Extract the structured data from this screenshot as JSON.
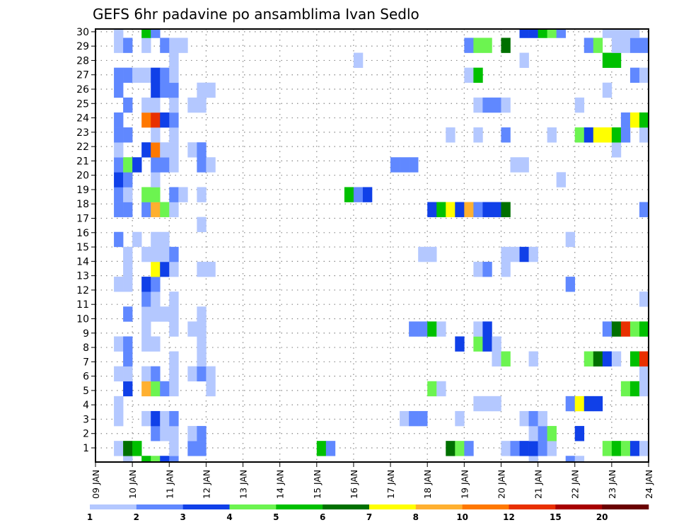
{
  "chart_data": {
    "type": "heatmap",
    "title": "GEFS 6hr padavine po ansamblima Ivan Sedlo",
    "xlabel": "",
    "ylabel": "",
    "x_tick_labels": [
      "09 JAN",
      "10 JAN",
      "11 JAN",
      "12 JAN",
      "13 JAN",
      "14 JAN",
      "15 JAN",
      "16 JAN",
      "17 JAN",
      "18 JAN",
      "19 JAN",
      "20 JAN",
      "21 JAN",
      "22 JAN",
      "23 JAN",
      "24 JAN"
    ],
    "x_steps_per_day": 4,
    "x_steps_total": 60,
    "y_tick_labels": [
      "1",
      "2",
      "3",
      "4",
      "5",
      "6",
      "7",
      "8",
      "9",
      "10",
      "11",
      "12",
      "13",
      "14",
      "15",
      "16",
      "17",
      "18",
      "19",
      "20",
      "21",
      "22",
      "23",
      "24",
      "25",
      "26",
      "27",
      "28",
      "29",
      "30"
    ],
    "ylim": [
      1,
      30
    ],
    "grid": true,
    "colorbar": {
      "placement": "bottom",
      "labels": [
        "1",
        "2",
        "3",
        "4",
        "5",
        "6",
        "7",
        "8",
        "10",
        "12",
        "15",
        "20"
      ],
      "colors": [
        "#b4c8ff",
        "#6088ff",
        "#1040e8",
        "#6cf450",
        "#00c000",
        "#007000",
        "#ffff00",
        "#ffb030",
        "#ff7800",
        "#e83000",
        "#a80000",
        "#6a0000"
      ]
    },
    "cells_note": "cells[member] = list of [6h step index from 09 JAN 00z, color level 1-12]",
    "cells": {
      "30": [
        [
          2,
          1
        ],
        [
          5,
          5
        ],
        [
          6,
          2
        ],
        [
          46,
          3
        ],
        [
          47,
          3
        ],
        [
          48,
          5
        ],
        [
          49,
          4
        ],
        [
          50,
          2
        ],
        [
          55,
          1
        ],
        [
          56,
          1
        ],
        [
          57,
          1
        ],
        [
          58,
          1
        ]
      ],
      "29": [
        [
          2,
          1
        ],
        [
          3,
          2
        ],
        [
          5,
          1
        ],
        [
          7,
          2
        ],
        [
          8,
          1
        ],
        [
          9,
          1
        ],
        [
          40,
          2
        ],
        [
          41,
          4
        ],
        [
          42,
          4
        ],
        [
          44,
          6
        ],
        [
          53,
          2
        ],
        [
          54,
          4
        ],
        [
          56,
          1
        ],
        [
          57,
          1
        ],
        [
          58,
          2
        ],
        [
          59,
          2
        ]
      ],
      "28": [
        [
          8,
          1
        ],
        [
          28,
          1
        ],
        [
          46,
          1
        ],
        [
          55,
          5
        ],
        [
          56,
          5
        ]
      ],
      "27": [
        [
          2,
          2
        ],
        [
          3,
          2
        ],
        [
          4,
          1
        ],
        [
          5,
          1
        ],
        [
          6,
          3
        ],
        [
          7,
          2
        ],
        [
          8,
          1
        ],
        [
          40,
          1
        ],
        [
          41,
          5
        ],
        [
          58,
          2
        ],
        [
          59,
          1
        ]
      ],
      "26": [
        [
          2,
          2
        ],
        [
          6,
          3
        ],
        [
          7,
          2
        ],
        [
          8,
          2
        ],
        [
          11,
          1
        ],
        [
          12,
          1
        ],
        [
          55,
          1
        ]
      ],
      "25": [
        [
          3,
          2
        ],
        [
          5,
          1
        ],
        [
          6,
          1
        ],
        [
          8,
          1
        ],
        [
          10,
          1
        ],
        [
          11,
          1
        ],
        [
          41,
          1
        ],
        [
          42,
          2
        ],
        [
          43,
          2
        ],
        [
          44,
          1
        ],
        [
          52,
          1
        ]
      ],
      "24": [
        [
          2,
          2
        ],
        [
          5,
          9
        ],
        [
          6,
          10
        ],
        [
          7,
          3
        ],
        [
          8,
          2
        ],
        [
          57,
          2
        ],
        [
          58,
          7
        ],
        [
          59,
          5
        ]
      ],
      "23": [
        [
          2,
          2
        ],
        [
          3,
          2
        ],
        [
          6,
          1
        ],
        [
          8,
          1
        ],
        [
          38,
          1
        ],
        [
          41,
          1
        ],
        [
          44,
          2
        ],
        [
          49,
          1
        ],
        [
          52,
          4
        ],
        [
          53,
          3
        ],
        [
          54,
          7
        ],
        [
          55,
          7
        ],
        [
          56,
          5
        ],
        [
          57,
          2
        ],
        [
          59,
          1
        ]
      ],
      "22": [
        [
          2,
          1
        ],
        [
          5,
          3
        ],
        [
          6,
          9
        ],
        [
          7,
          1
        ],
        [
          8,
          1
        ],
        [
          10,
          1
        ],
        [
          11,
          2
        ],
        [
          56,
          1
        ]
      ],
      "21": [
        [
          2,
          2
        ],
        [
          3,
          4
        ],
        [
          4,
          3
        ],
        [
          6,
          2
        ],
        [
          7,
          2
        ],
        [
          8,
          1
        ],
        [
          11,
          2
        ],
        [
          12,
          1
        ],
        [
          32,
          2
        ],
        [
          33,
          2
        ],
        [
          34,
          2
        ],
        [
          45,
          1
        ],
        [
          46,
          1
        ]
      ],
      "20": [
        [
          2,
          3
        ],
        [
          3,
          2
        ],
        [
          6,
          1
        ],
        [
          50,
          1
        ]
      ],
      "19": [
        [
          2,
          2
        ],
        [
          3,
          1
        ],
        [
          5,
          4
        ],
        [
          6,
          4
        ],
        [
          8,
          2
        ],
        [
          9,
          1
        ],
        [
          11,
          1
        ],
        [
          27,
          5
        ],
        [
          28,
          2
        ],
        [
          29,
          3
        ]
      ],
      "18": [
        [
          2,
          2
        ],
        [
          3,
          2
        ],
        [
          5,
          2
        ],
        [
          6,
          8
        ],
        [
          7,
          4
        ],
        [
          8,
          1
        ],
        [
          36,
          3
        ],
        [
          37,
          5
        ],
        [
          38,
          7
        ],
        [
          39,
          3
        ],
        [
          40,
          8
        ],
        [
          41,
          2
        ],
        [
          42,
          3
        ],
        [
          43,
          3
        ],
        [
          44,
          6
        ],
        [
          59,
          2
        ]
      ],
      "17": [
        [
          11,
          1
        ]
      ],
      "16": [
        [
          2,
          2
        ],
        [
          4,
          1
        ],
        [
          6,
          1
        ],
        [
          7,
          1
        ],
        [
          51,
          1
        ]
      ],
      "15": [
        [
          3,
          1
        ],
        [
          5,
          1
        ],
        [
          6,
          1
        ],
        [
          7,
          1
        ],
        [
          8,
          2
        ],
        [
          35,
          1
        ],
        [
          36,
          1
        ],
        [
          44,
          1
        ],
        [
          45,
          1
        ],
        [
          46,
          3
        ],
        [
          47,
          1
        ]
      ],
      "14": [
        [
          3,
          1
        ],
        [
          6,
          7
        ],
        [
          7,
          3
        ],
        [
          8,
          1
        ],
        [
          11,
          1
        ],
        [
          12,
          1
        ],
        [
          41,
          1
        ],
        [
          42,
          2
        ],
        [
          44,
          1
        ]
      ],
      "13": [
        [
          2,
          1
        ],
        [
          3,
          1
        ],
        [
          5,
          3
        ],
        [
          6,
          2
        ],
        [
          51,
          2
        ]
      ],
      "12": [
        [
          5,
          2
        ],
        [
          6,
          1
        ],
        [
          8,
          1
        ],
        [
          59,
          1
        ]
      ],
      "11": [
        [
          3,
          2
        ],
        [
          5,
          1
        ],
        [
          6,
          1
        ],
        [
          7,
          1
        ],
        [
          8,
          1
        ],
        [
          11,
          1
        ]
      ],
      "10": [
        [
          5,
          1
        ],
        [
          8,
          1
        ],
        [
          10,
          1
        ],
        [
          11,
          1
        ],
        [
          34,
          2
        ],
        [
          35,
          2
        ],
        [
          36,
          5
        ],
        [
          37,
          1
        ],
        [
          41,
          1
        ],
        [
          42,
          3
        ],
        [
          55,
          2
        ],
        [
          56,
          6
        ],
        [
          57,
          10
        ],
        [
          58,
          4
        ],
        [
          59,
          5
        ]
      ],
      "9": [
        [
          2,
          1
        ],
        [
          3,
          2
        ],
        [
          5,
          1
        ],
        [
          6,
          1
        ],
        [
          11,
          1
        ],
        [
          39,
          3
        ],
        [
          41,
          4
        ],
        [
          42,
          3
        ],
        [
          43,
          1
        ]
      ],
      "8": [
        [
          3,
          2
        ],
        [
          8,
          1
        ],
        [
          11,
          1
        ],
        [
          43,
          1
        ],
        [
          44,
          4
        ],
        [
          47,
          1
        ],
        [
          53,
          4
        ],
        [
          54,
          6
        ],
        [
          55,
          3
        ],
        [
          56,
          1
        ],
        [
          58,
          5
        ],
        [
          59,
          10
        ]
      ],
      "7": [
        [
          2,
          1
        ],
        [
          3,
          1
        ],
        [
          5,
          1
        ],
        [
          6,
          2
        ],
        [
          8,
          1
        ],
        [
          10,
          1
        ],
        [
          11,
          2
        ],
        [
          12,
          1
        ],
        [
          59,
          1
        ]
      ],
      "6": [
        [
          3,
          3
        ],
        [
          5,
          8
        ],
        [
          6,
          4
        ],
        [
          7,
          2
        ],
        [
          8,
          1
        ],
        [
          12,
          1
        ],
        [
          36,
          4
        ],
        [
          37,
          1
        ],
        [
          57,
          4
        ],
        [
          58,
          5
        ],
        [
          59,
          1
        ]
      ],
      "5": [
        [
          2,
          1
        ],
        [
          41,
          1
        ],
        [
          42,
          1
        ],
        [
          43,
          1
        ],
        [
          51,
          2
        ],
        [
          52,
          7
        ],
        [
          53,
          3
        ],
        [
          54,
          3
        ]
      ],
      "4": [
        [
          2,
          1
        ],
        [
          5,
          1
        ],
        [
          6,
          3
        ],
        [
          7,
          1
        ],
        [
          8,
          2
        ],
        [
          33,
          1
        ],
        [
          34,
          2
        ],
        [
          35,
          2
        ],
        [
          39,
          1
        ],
        [
          46,
          1
        ],
        [
          47,
          2
        ],
        [
          48,
          1
        ]
      ],
      "3": [
        [
          6,
          2
        ],
        [
          7,
          1
        ],
        [
          8,
          1
        ],
        [
          10,
          1
        ],
        [
          11,
          2
        ],
        [
          47,
          1
        ],
        [
          48,
          2
        ],
        [
          49,
          4
        ],
        [
          52,
          3
        ]
      ],
      "2": [
        [
          2,
          1
        ],
        [
          3,
          6
        ],
        [
          4,
          5
        ],
        [
          8,
          1
        ],
        [
          10,
          2
        ],
        [
          11,
          2
        ],
        [
          24,
          5
        ],
        [
          25,
          2
        ],
        [
          38,
          6
        ],
        [
          39,
          4
        ],
        [
          40,
          2
        ],
        [
          44,
          1
        ],
        [
          45,
          2
        ],
        [
          46,
          3
        ],
        [
          47,
          3
        ],
        [
          48,
          2
        ],
        [
          49,
          1
        ],
        [
          55,
          4
        ],
        [
          56,
          5
        ],
        [
          57,
          4
        ],
        [
          58,
          3
        ],
        [
          59,
          1
        ]
      ],
      "1": [
        [
          3,
          1
        ],
        [
          5,
          5
        ],
        [
          6,
          4
        ],
        [
          7,
          3
        ],
        [
          8,
          2
        ],
        [
          47,
          1
        ],
        [
          51,
          2
        ],
        [
          52,
          1
        ]
      ]
    }
  }
}
